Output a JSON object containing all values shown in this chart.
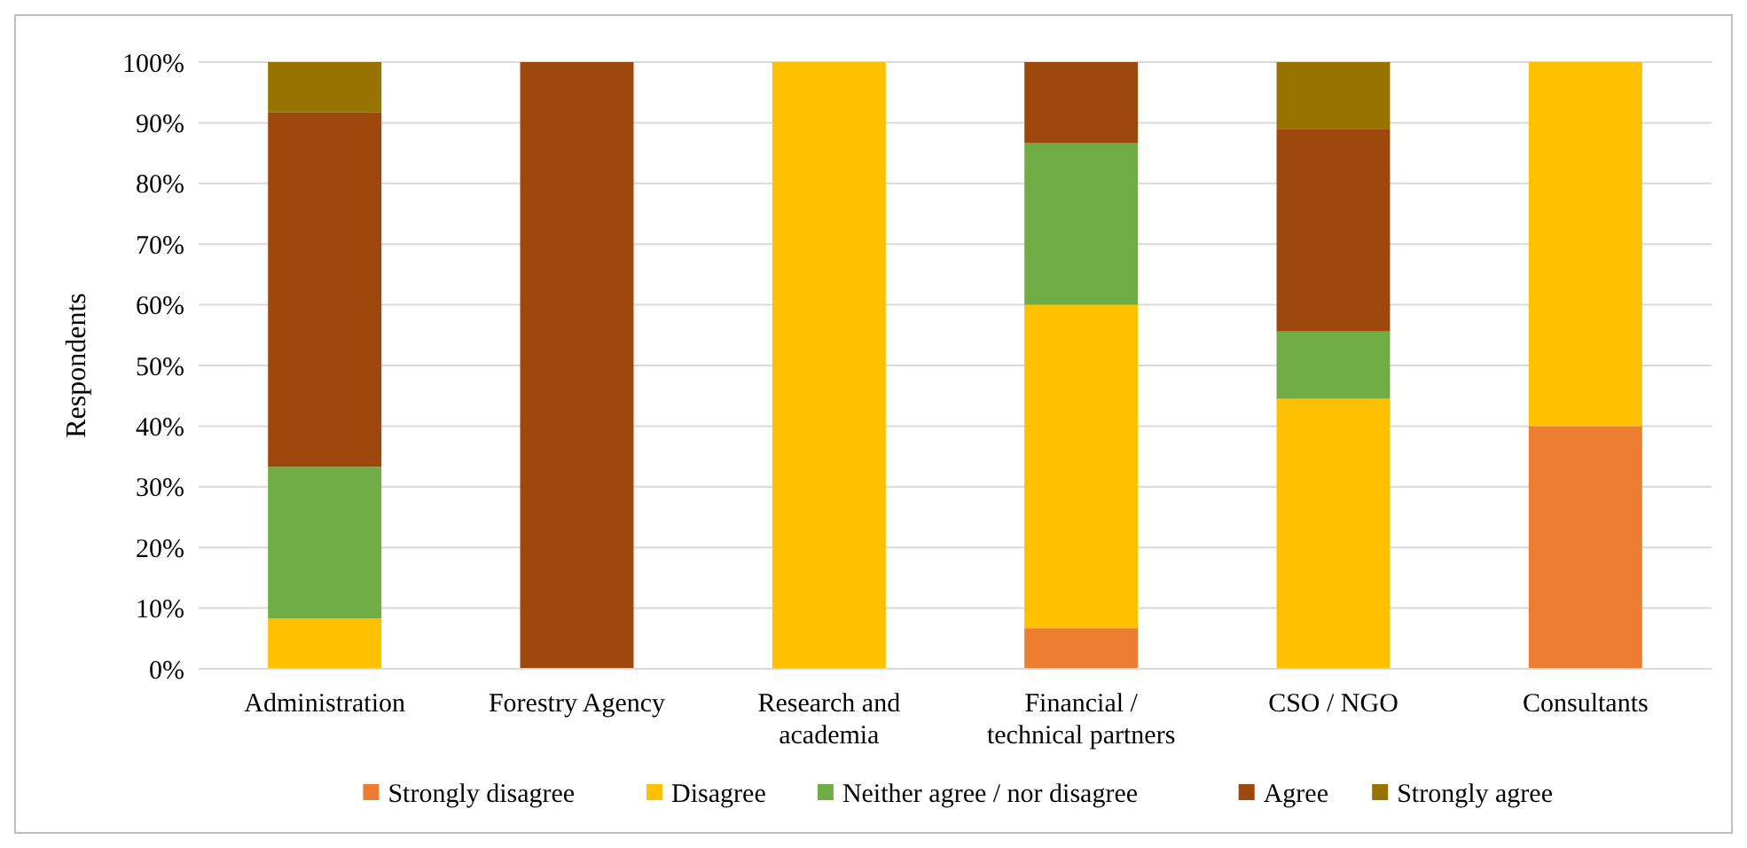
{
  "chart_data": {
    "type": "bar",
    "stacked": true,
    "ylabel": "Respondents",
    "categories": [
      "Administration",
      "Forestry Agency",
      "Research and academia",
      "Financial / technical partners",
      "CSO / NGO",
      "Consultants"
    ],
    "series": [
      {
        "name": "Strongly disagree",
        "color": "#ed7d31",
        "values": [
          0,
          0,
          0,
          6.7,
          0,
          40
        ]
      },
      {
        "name": "Disagree",
        "color": "#ffc000",
        "values": [
          8.3,
          0,
          100,
          53.3,
          44.5,
          60
        ]
      },
      {
        "name": "Neither agree / nor disagree",
        "color": "#70ad47",
        "values": [
          25,
          0,
          0,
          26.7,
          11.1,
          0
        ]
      },
      {
        "name": "Agree",
        "color": "#9e480e",
        "values": [
          58.4,
          100,
          0,
          13.3,
          33.3,
          0
        ]
      },
      {
        "name": "Strongly agree",
        "color": "#997300",
        "values": [
          8.3,
          0,
          0,
          0,
          11.1,
          0
        ]
      }
    ],
    "ylim": [
      0,
      100
    ],
    "yticks": [
      {
        "value": 0,
        "label": "0%"
      },
      {
        "value": 10,
        "label": "10%"
      },
      {
        "value": 20,
        "label": "20%"
      },
      {
        "value": 30,
        "label": "30%"
      },
      {
        "value": 40,
        "label": "40%"
      },
      {
        "value": 50,
        "label": "50%"
      },
      {
        "value": 60,
        "label": "60%"
      },
      {
        "value": 70,
        "label": "70%"
      },
      {
        "value": 80,
        "label": "80%"
      },
      {
        "value": 90,
        "label": "90%"
      },
      {
        "value": 100,
        "label": "100%"
      }
    ],
    "grid": "y",
    "legend": "bottom"
  }
}
